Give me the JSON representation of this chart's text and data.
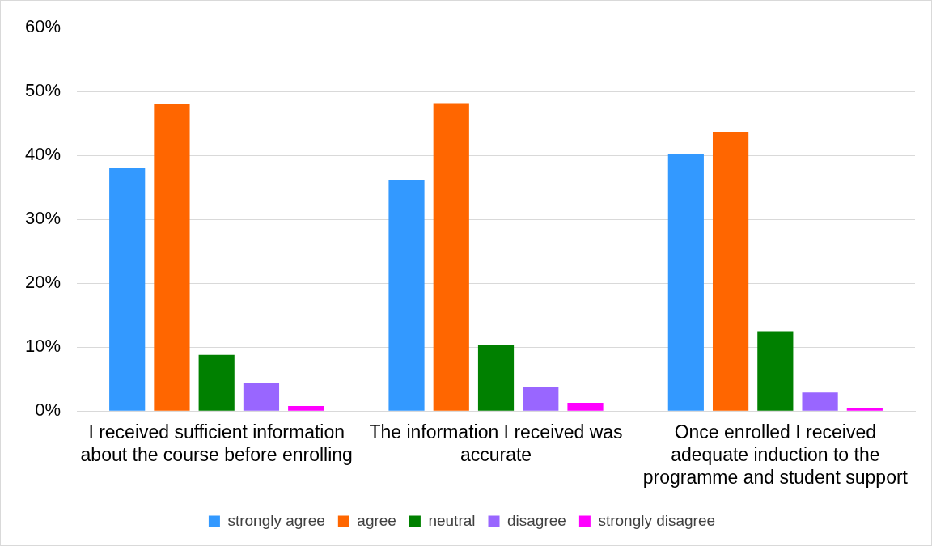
{
  "chart_data": {
    "type": "bar",
    "categories": [
      "I received sufficient information about the course before enrolling",
      "The information I received was accurate",
      "Once enrolled I received adequate induction to the programme and student support"
    ],
    "series": [
      {
        "name": "strongly agree",
        "color": "#3399ff",
        "values": [
          38,
          36.2,
          40.2
        ]
      },
      {
        "name": "agree",
        "color": "#ff6600",
        "values": [
          48,
          48.2,
          43.7
        ]
      },
      {
        "name": "neutral",
        "color": "#008000",
        "values": [
          8.8,
          10.4,
          12.5
        ]
      },
      {
        "name": "disagree",
        "color": "#9966ff",
        "values": [
          4.4,
          3.7,
          2.9
        ]
      },
      {
        "name": "strongly disagree",
        "color": "#ff00ff",
        "values": [
          0.8,
          1.3,
          0.4
        ]
      }
    ],
    "ylim": [
      0,
      60
    ],
    "yticks": [
      {
        "value": 0,
        "label": "0%"
      },
      {
        "value": 10,
        "label": "10%"
      },
      {
        "value": 20,
        "label": "20%"
      },
      {
        "value": 30,
        "label": "30%"
      },
      {
        "value": 40,
        "label": "40%"
      },
      {
        "value": 50,
        "label": "50%"
      },
      {
        "value": 60,
        "label": "60%"
      }
    ],
    "grid": "y",
    "legend": "bottom"
  }
}
